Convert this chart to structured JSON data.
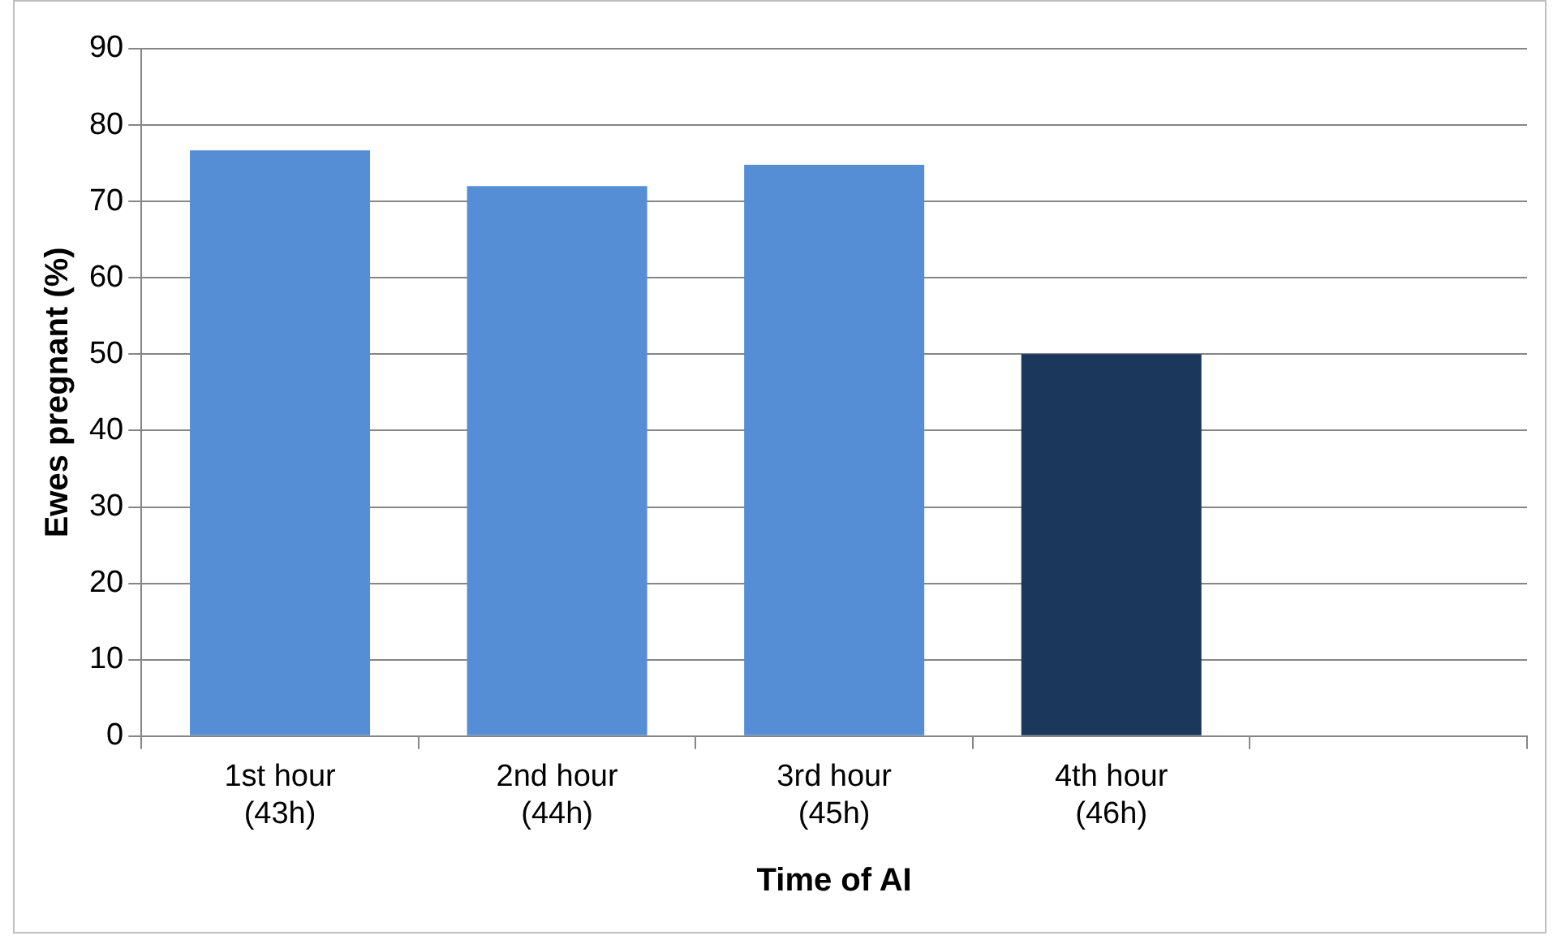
{
  "chart_data": {
    "type": "bar",
    "xlabel": "Time of AI",
    "ylabel": "Ewes pregnant (%)",
    "categories": [
      "1st hour\n(43h)",
      "2nd hour\n(44h)",
      "3rd hour\n(45h)",
      "4th hour\n(46h)",
      null
    ],
    "values": [
      76.7,
      72,
      74.8,
      50,
      null
    ],
    "colors": [
      "#558ed5",
      "#558ed5",
      "#558ed5",
      "#1b375c",
      null
    ],
    "ylim": [
      0,
      90
    ],
    "yticks": [
      0,
      10,
      20,
      30,
      40,
      50,
      60,
      70,
      80,
      90
    ],
    "grid": "y",
    "legend": false
  }
}
